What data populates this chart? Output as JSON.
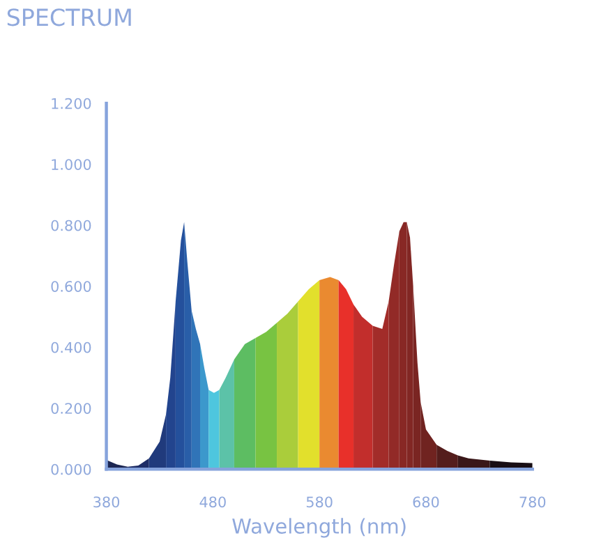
{
  "chart_data": {
    "type": "area",
    "title": "SPECTRUM",
    "xlabel": "Wavelength (nm)",
    "series": [
      {
        "color": "#1c2652",
        "x": [
          380,
          390,
          400
        ],
        "values": [
          0.03,
          0.015,
          0.008
        ]
      },
      {
        "color": "#1e2d66",
        "x": [
          400,
          410,
          420
        ],
        "values": [
          0.008,
          0.012,
          0.035
        ]
      },
      {
        "color": "#203a7c",
        "x": [
          420,
          430,
          436
        ],
        "values": [
          0.035,
          0.09,
          0.18
        ]
      },
      {
        "color": "#22448e",
        "x": [
          436,
          440,
          445
        ],
        "values": [
          0.18,
          0.3,
          0.55
        ]
      },
      {
        "color": "#24509c",
        "x": [
          445,
          450,
          453
        ],
        "values": [
          0.55,
          0.75,
          0.81
        ]
      },
      {
        "color": "#295ea8",
        "x": [
          453,
          456,
          460
        ],
        "values": [
          0.81,
          0.68,
          0.52
        ]
      },
      {
        "color": "#3074b8",
        "x": [
          460,
          464,
          468
        ],
        "values": [
          0.52,
          0.46,
          0.41
        ]
      },
      {
        "color": "#3c98cc",
        "x": [
          468,
          472,
          476
        ],
        "values": [
          0.41,
          0.33,
          0.26
        ]
      },
      {
        "color": "#4ec6de",
        "x": [
          476,
          481,
          486
        ],
        "values": [
          0.26,
          0.25,
          0.26
        ]
      },
      {
        "color": "#5cc2a8",
        "x": [
          486,
          492,
          500
        ],
        "values": [
          0.26,
          0.3,
          0.36
        ]
      },
      {
        "color": "#5dbd62",
        "x": [
          500,
          510,
          520
        ],
        "values": [
          0.36,
          0.41,
          0.43
        ]
      },
      {
        "color": "#78c342",
        "x": [
          520,
          530,
          540
        ],
        "values": [
          0.43,
          0.45,
          0.48
        ]
      },
      {
        "color": "#aacd3b",
        "x": [
          540,
          550,
          560
        ],
        "values": [
          0.48,
          0.51,
          0.55
        ]
      },
      {
        "color": "#e2e02c",
        "x": [
          560,
          570,
          580
        ],
        "values": [
          0.55,
          0.59,
          0.62
        ]
      },
      {
        "color": "#ea8a30",
        "x": [
          580,
          590,
          598
        ],
        "values": [
          0.62,
          0.63,
          0.62
        ]
      },
      {
        "color": "#e8302a",
        "x": [
          598,
          605,
          612
        ],
        "values": [
          0.62,
          0.59,
          0.54
        ]
      },
      {
        "color": "#c22e2c",
        "x": [
          612,
          620,
          630
        ],
        "values": [
          0.54,
          0.5,
          0.47
        ]
      },
      {
        "color": "#a22c29",
        "x": [
          630,
          639,
          645
        ],
        "values": [
          0.47,
          0.46,
          0.55
        ]
      },
      {
        "color": "#922a27",
        "x": [
          645,
          650,
          655
        ],
        "values": [
          0.55,
          0.67,
          0.78
        ]
      },
      {
        "color": "#882825",
        "x": [
          655,
          659,
          662
        ],
        "values": [
          0.78,
          0.81,
          0.81
        ]
      },
      {
        "color": "#822724",
        "x": [
          662,
          665,
          668
        ],
        "values": [
          0.81,
          0.76,
          0.6
        ]
      },
      {
        "color": "#7a2522",
        "x": [
          668,
          672,
          675
        ],
        "values": [
          0.6,
          0.35,
          0.22
        ]
      },
      {
        "color": "#702320",
        "x": [
          675,
          680,
          690
        ],
        "values": [
          0.22,
          0.13,
          0.08
        ]
      },
      {
        "color": "#541d1c",
        "x": [
          690,
          700,
          710
        ],
        "values": [
          0.08,
          0.06,
          0.045
        ]
      },
      {
        "color": "#3a1719",
        "x": [
          710,
          720,
          740
        ],
        "values": [
          0.045,
          0.035,
          0.028
        ]
      },
      {
        "color": "#180e14",
        "x": [
          740,
          760,
          780
        ],
        "values": [
          0.028,
          0.022,
          0.02
        ]
      }
    ],
    "xlim": [
      380,
      780
    ],
    "xticks": [
      380,
      480,
      580,
      680,
      780
    ],
    "ylim": [
      0,
      1.2
    ],
    "yticks": [
      {
        "value": 0,
        "label": "0.000"
      },
      {
        "value": 0.2,
        "label": "0.200"
      },
      {
        "value": 0.4,
        "label": "0.400"
      },
      {
        "value": 0.6,
        "label": "0.600"
      },
      {
        "value": 0.8,
        "label": "0.800"
      },
      {
        "value": 1.0,
        "label": "1.000"
      },
      {
        "value": 1.2,
        "label": "1.200"
      }
    ],
    "grid": false
  }
}
